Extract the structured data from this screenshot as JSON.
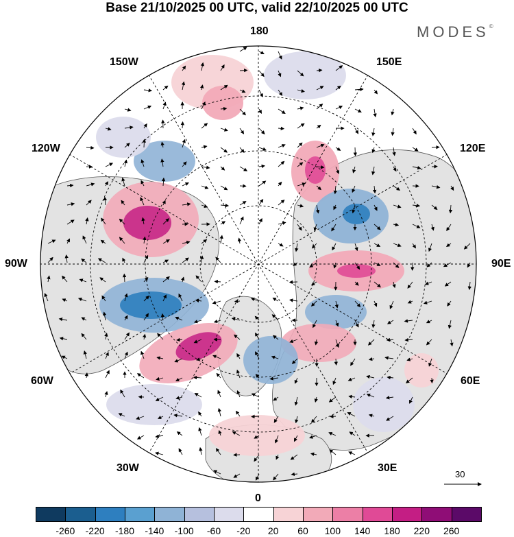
{
  "header": {
    "title": "Base 21/10/2025 00 UTC, valid 22/10/2025 00 UTC",
    "brand": "MODES",
    "brand_mark": "©"
  },
  "map": {
    "projection": "north-polar-stereographic",
    "longitude_labels": {
      "top": "180",
      "bottom": "0",
      "left": "90W",
      "right": "90E",
      "upper_left_1": "150W",
      "upper_left_2": "120W",
      "upper_right_1": "150E",
      "upper_right_2": "120E",
      "lower_left_1": "60W",
      "lower_left_2": "30W",
      "lower_right_1": "60E",
      "lower_right_2": "30E"
    },
    "reference_vector": "30"
  },
  "legend": {
    "colors": [
      "#0f3a5f",
      "#1b5e8f",
      "#2e7fbf",
      "#5aa0d0",
      "#8fb3d6",
      "#b6c0de",
      "#dcdcec",
      "#ffffff",
      "#f7d3d6",
      "#f2aab8",
      "#ec7fa6",
      "#e04a96",
      "#c41e84",
      "#8f0d76",
      "#5b0a68"
    ],
    "ticks": [
      "-260",
      "-220",
      "-180",
      "-140",
      "-100",
      "-60",
      "-20",
      "20",
      "60",
      "100",
      "140",
      "180",
      "220",
      "260"
    ]
  },
  "colors": {
    "land": "#e6e6e6",
    "positive_strong": "#c41e84",
    "negative_strong": "#1b5e8f"
  }
}
